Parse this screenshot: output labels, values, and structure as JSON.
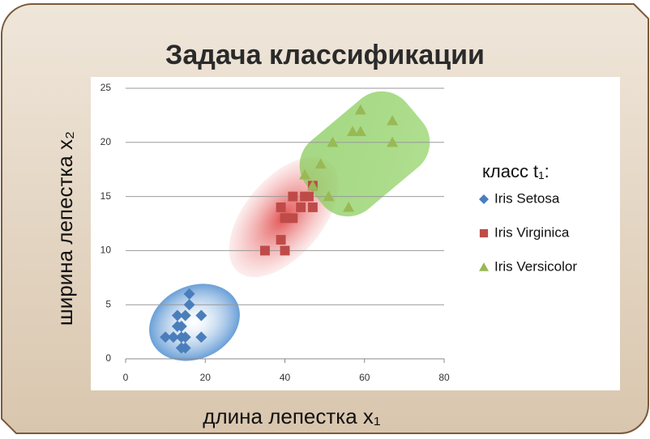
{
  "chart_data": {
    "type": "scatter",
    "title": "Задача классификации",
    "x_label": "длина лепестка x₁",
    "y_label": "ширина лепестка x₂",
    "legend_title": "класс t₁:",
    "xlim": [
      0,
      80
    ],
    "xticks": [
      0,
      20,
      40,
      60,
      80
    ],
    "ylim": [
      0,
      25
    ],
    "yticks": [
      0,
      5,
      10,
      15,
      20,
      25
    ],
    "grid": true,
    "series": [
      {
        "name": "Iris Setosa",
        "color": "#4a7ebb",
        "marker": "diamond",
        "x": [
          10,
          13,
          14,
          14,
          15,
          16,
          15,
          16,
          19,
          19,
          14,
          15,
          12,
          13
        ],
        "values": [
          2,
          4,
          3,
          2,
          2,
          5,
          4,
          6,
          4,
          2,
          1,
          1,
          2,
          3
        ]
      },
      {
        "name": "Iris Virginica",
        "color": "#be4b48",
        "marker": "square",
        "x": [
          35,
          39,
          40,
          39,
          40,
          42,
          42,
          44,
          45,
          47,
          47,
          46
        ],
        "values": [
          10,
          11,
          10,
          14,
          13,
          13,
          15,
          14,
          15,
          16,
          14,
          15
        ]
      },
      {
        "name": "Iris Versicolor",
        "color": "#98b954",
        "marker": "triangle",
        "x": [
          45,
          49,
          51,
          52,
          56,
          57,
          59,
          59,
          67,
          67,
          47
        ],
        "values": [
          17,
          18,
          15,
          20,
          14,
          21,
          23,
          21,
          22,
          20,
          16
        ]
      }
    ]
  }
}
